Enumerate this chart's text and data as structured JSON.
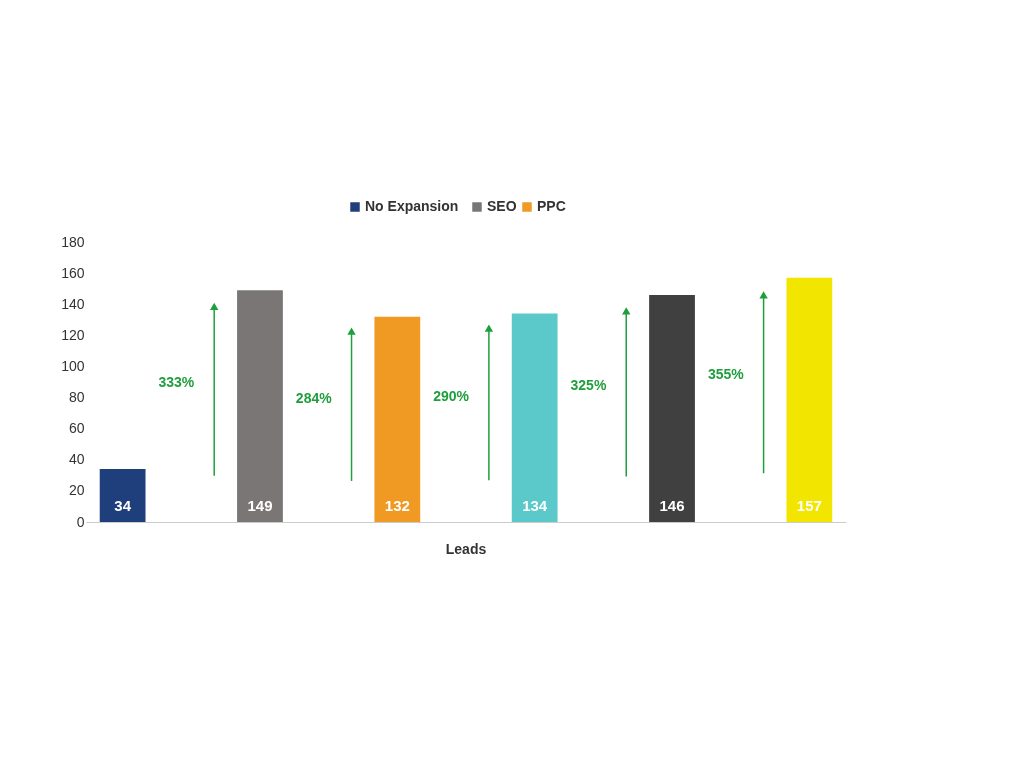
{
  "chart_data": {
    "type": "bar",
    "categories": [
      "Leads"
    ],
    "series": [
      {
        "name": "No Expansion",
        "color": "#1f3e7c",
        "values": [
          34
        ]
      },
      {
        "name": "SEO",
        "color": "#7a7676",
        "values": [
          149
        ]
      },
      {
        "name": "PPC",
        "color": "#f09a24",
        "values": [
          132
        ]
      },
      {
        "color": "#5bc8c9",
        "values": [
          134
        ]
      },
      {
        "color": "#404040",
        "values": [
          146
        ]
      },
      {
        "color": "#f2e600",
        "values": [
          157
        ]
      }
    ],
    "annotations": [
      "333%",
      "284%",
      "290%",
      "325%",
      "355%"
    ],
    "ylim": [
      0,
      180
    ],
    "yticks": [
      0,
      20,
      40,
      60,
      80,
      100,
      120,
      140,
      160,
      180
    ],
    "grid": false,
    "legend": "top",
    "data_labels": true
  }
}
